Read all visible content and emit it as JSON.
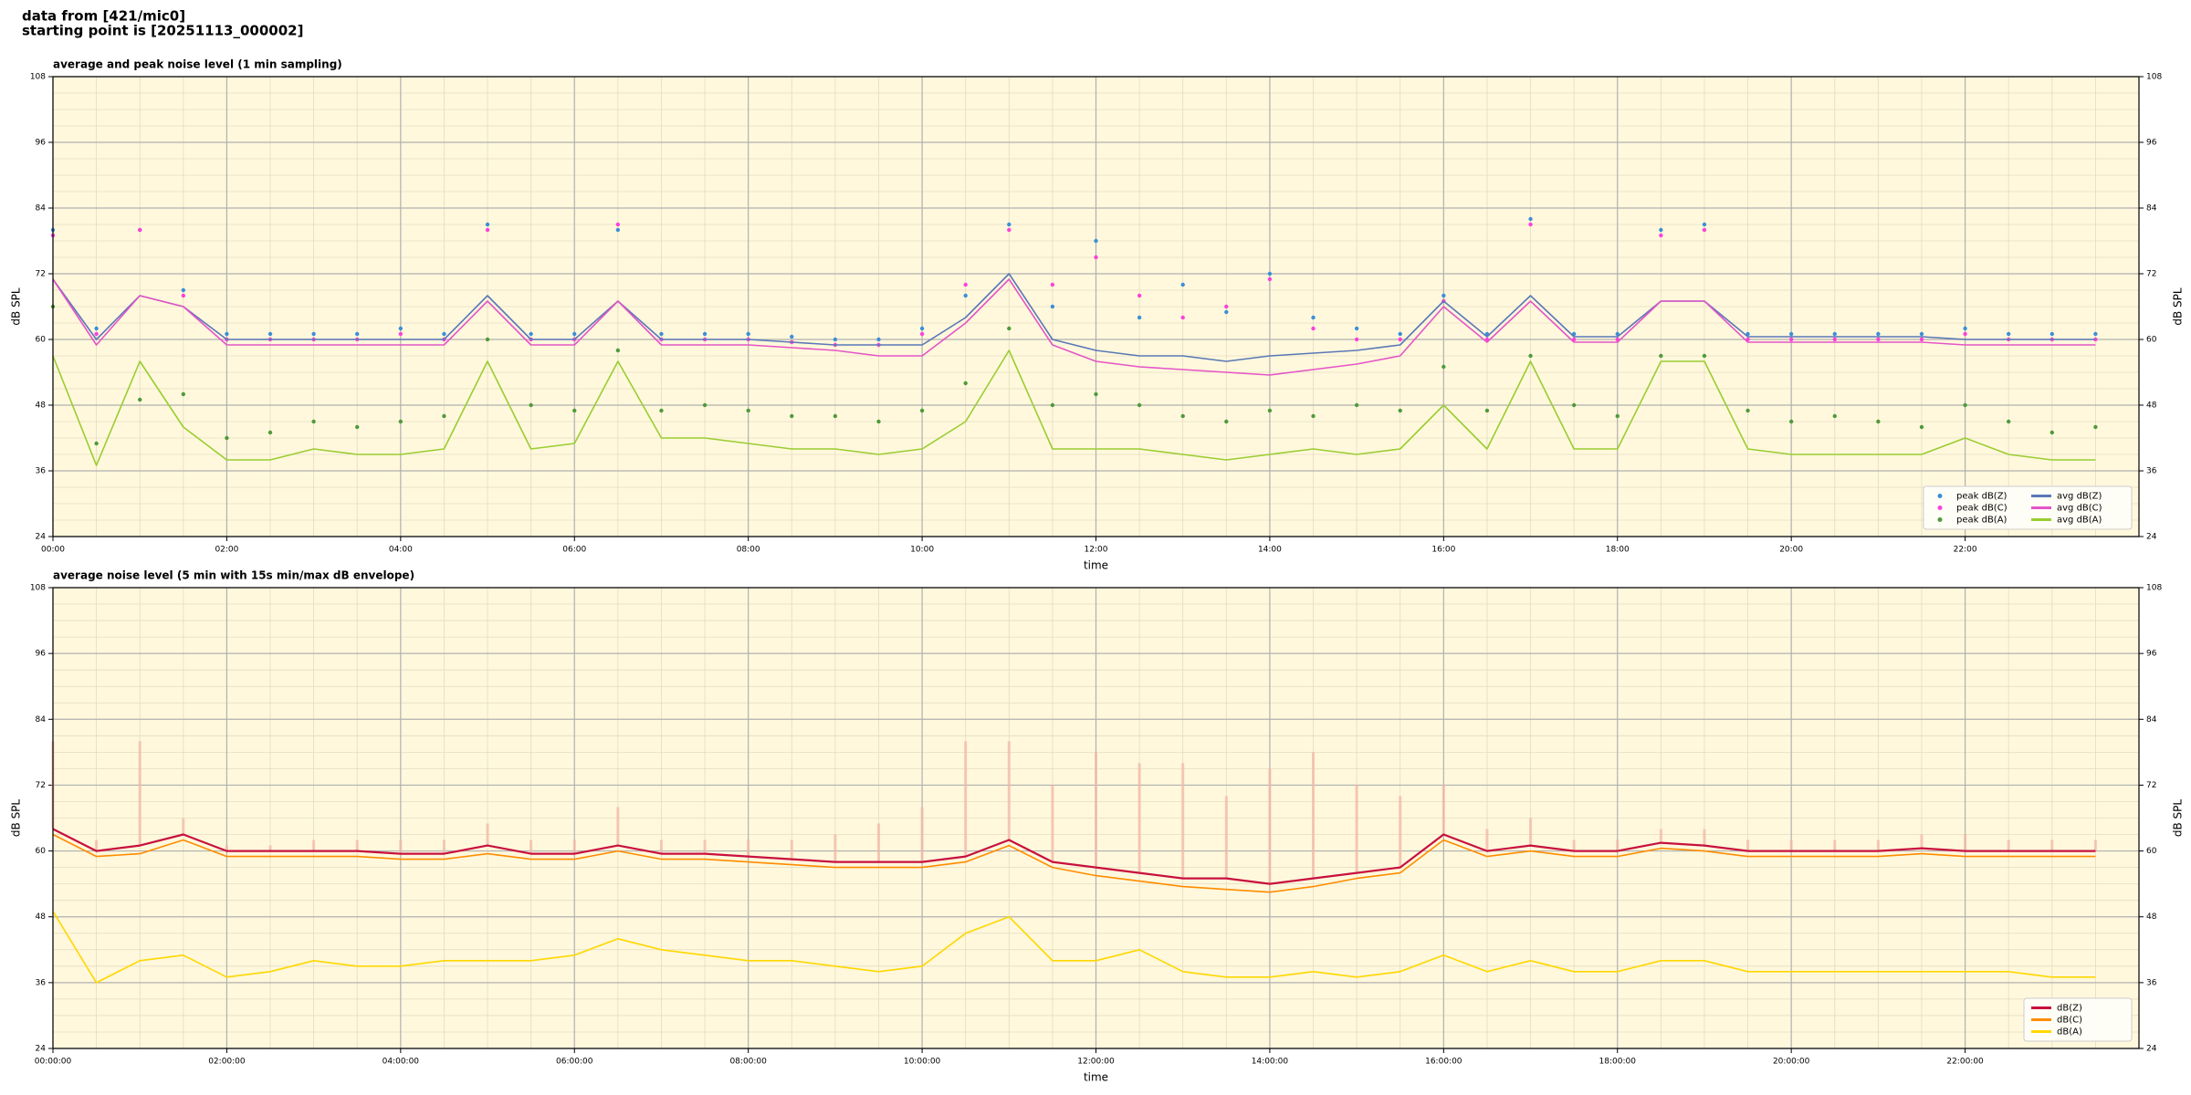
{
  "page_title": [
    "data from [421/mic0]",
    "starting point is [20251113_000002]"
  ],
  "chart_data": [
    {
      "type": "line",
      "title": "average and peak noise level (1 min sampling)",
      "xlabel": "time",
      "ylabel": "dB SPL",
      "background": "#fff8dc",
      "grid": true,
      "legend": "lower right",
      "legend_columns": 2,
      "x": [
        0,
        0.5,
        1,
        1.5,
        2,
        2.5,
        3,
        3.5,
        4,
        4.5,
        5,
        5.5,
        6,
        6.5,
        7,
        7.5,
        8,
        8.5,
        9,
        9.5,
        10,
        10.5,
        11,
        11.5,
        12,
        12.5,
        13,
        13.5,
        14,
        14.5,
        15,
        15.5,
        16,
        16.5,
        17,
        17.5,
        18,
        18.5,
        19,
        19.5,
        20,
        20.5,
        21,
        21.5,
        22,
        22.5,
        23,
        23.5
      ],
      "xlim": [
        0,
        24
      ],
      "xticks": [
        {
          "value": 0,
          "label": "00:00"
        },
        {
          "value": 2,
          "label": "02:00"
        },
        {
          "value": 4,
          "label": "04:00"
        },
        {
          "value": 6,
          "label": "06:00"
        },
        {
          "value": 8,
          "label": "08:00"
        },
        {
          "value": 10,
          "label": "10:00"
        },
        {
          "value": 12,
          "label": "12:00"
        },
        {
          "value": 14,
          "label": "14:00"
        },
        {
          "value": 16,
          "label": "16:00"
        },
        {
          "value": 18,
          "label": "18:00"
        },
        {
          "value": 20,
          "label": "20:00"
        },
        {
          "value": 22,
          "label": "22:00"
        }
      ],
      "ylim": [
        24,
        108
      ],
      "yticks": [
        24,
        36,
        48,
        60,
        72,
        84,
        96,
        108
      ],
      "series": [
        {
          "name": "peak dB(Z)",
          "mode": "markers",
          "color": "#3a8fd8",
          "values": [
            80,
            62,
            80,
            69,
            61,
            61,
            61,
            61,
            62,
            61,
            81,
            61,
            61,
            80,
            61,
            61,
            61,
            60.5,
            60,
            60,
            62,
            68,
            81,
            66,
            78,
            64,
            70,
            65,
            72,
            64,
            62,
            61,
            68,
            61,
            82,
            61,
            61,
            80,
            81,
            61,
            61,
            61,
            61,
            61,
            62,
            61,
            61,
            61
          ]
        },
        {
          "name": "peak dB(C)",
          "mode": "markers",
          "color": "#ff3fdc",
          "values": [
            79,
            61,
            80,
            68,
            60,
            60,
            60,
            60,
            61,
            60,
            80,
            60,
            60,
            81,
            60,
            60,
            60,
            59.5,
            59,
            59,
            61,
            70,
            80,
            70,
            75,
            68,
            64,
            66,
            71,
            62,
            60,
            60,
            67,
            60,
            81,
            60,
            60,
            79,
            80,
            60,
            60,
            60,
            60,
            60,
            61,
            60,
            60,
            60
          ]
        },
        {
          "name": "peak dB(A)",
          "mode": "markers",
          "color": "#4e9a3a",
          "values": [
            66,
            41,
            49,
            50,
            42,
            43,
            45,
            44,
            45,
            46,
            60,
            48,
            47,
            58,
            47,
            48,
            47,
            46,
            46,
            45,
            47,
            52,
            62,
            48,
            50,
            48,
            46,
            45,
            47,
            46,
            48,
            47,
            55,
            47,
            57,
            48,
            46,
            57,
            57,
            47,
            45,
            46,
            45,
            44,
            48,
            45,
            43,
            44
          ]
        },
        {
          "name": "avg dB(Z)",
          "mode": "lines",
          "color": "#5a78b8",
          "values": [
            71,
            60,
            68,
            66,
            60,
            60,
            60,
            60,
            60,
            60,
            68,
            60,
            60,
            67,
            60,
            60,
            60,
            59.5,
            59,
            59,
            59,
            64,
            72,
            60,
            58,
            57,
            57,
            56,
            57,
            57.5,
            58,
            59,
            67,
            60.5,
            68,
            60.5,
            60.5,
            67,
            67,
            60.5,
            60.5,
            60.5,
            60.5,
            60.5,
            60,
            60,
            60,
            60
          ]
        },
        {
          "name": "avg dB(C)",
          "mode": "lines",
          "color": "#e455c8",
          "values": [
            71,
            59,
            68,
            66,
            59,
            59,
            59,
            59,
            59,
            59,
            67,
            59,
            59,
            67,
            59,
            59,
            59,
            58.5,
            58,
            57,
            57,
            63,
            71,
            59,
            56,
            55,
            54.5,
            54,
            53.5,
            54.5,
            55.5,
            57,
            66,
            59.5,
            67,
            59.5,
            59.5,
            67,
            67,
            59.5,
            59.5,
            59.5,
            59.5,
            59.5,
            59,
            59,
            59,
            59
          ]
        },
        {
          "name": "avg dB(A)",
          "mode": "lines",
          "color": "#9acd32",
          "values": [
            57,
            37,
            56,
            44,
            38,
            38,
            40,
            39,
            39,
            40,
            56,
            40,
            41,
            56,
            42,
            42,
            41,
            40,
            40,
            39,
            40,
            45,
            58,
            40,
            40,
            40,
            39,
            38,
            39,
            40,
            39,
            40,
            48,
            40,
            56,
            40,
            40,
            56,
            56,
            40,
            39,
            39,
            39,
            39,
            42,
            39,
            38,
            38
          ]
        }
      ]
    },
    {
      "type": "line",
      "title": "average noise level (5 min with 15s min/max dB envelope)",
      "xlabel": "time",
      "ylabel": "dB SPL",
      "background": "#fff8dc",
      "grid": true,
      "legend": "lower right",
      "legend_columns": 1,
      "x": [
        0,
        0.5,
        1,
        1.5,
        2,
        2.5,
        3,
        3.5,
        4,
        4.5,
        5,
        5.5,
        6,
        6.5,
        7,
        7.5,
        8,
        8.5,
        9,
        9.5,
        10,
        10.5,
        11,
        11.5,
        12,
        12.5,
        13,
        13.5,
        14,
        14.5,
        15,
        15.5,
        16,
        16.5,
        17,
        17.5,
        18,
        18.5,
        19,
        19.5,
        20,
        20.5,
        21,
        21.5,
        22,
        22.5,
        23,
        23.5
      ],
      "xlim": [
        0,
        24
      ],
      "xticks": [
        {
          "value": 0,
          "label": "00:00:00"
        },
        {
          "value": 2,
          "label": "02:00:00"
        },
        {
          "value": 4,
          "label": "04:00:00"
        },
        {
          "value": 6,
          "label": "06:00:00"
        },
        {
          "value": 8,
          "label": "08:00:00"
        },
        {
          "value": 10,
          "label": "10:00:00"
        },
        {
          "value": 12,
          "label": "12:00:00"
        },
        {
          "value": 14,
          "label": "14:00:00"
        },
        {
          "value": 16,
          "label": "16:00:00"
        },
        {
          "value": 18,
          "label": "18:00:00"
        },
        {
          "value": 20,
          "label": "20:00:00"
        },
        {
          "value": 22,
          "label": "22:00:00"
        }
      ],
      "ylim": [
        24,
        108
      ],
      "yticks": [
        24,
        36,
        48,
        60,
        72,
        84,
        96,
        108
      ],
      "envelope": {
        "color": "#f4b8a8",
        "max": [
          80,
          62,
          80,
          66,
          61,
          61,
          62,
          62,
          62,
          62,
          65,
          62,
          62,
          68,
          62,
          62,
          62,
          62,
          63,
          65,
          68,
          80,
          80,
          72,
          78,
          76,
          76,
          70,
          75,
          78,
          72,
          70,
          72,
          64,
          66,
          62,
          62,
          64,
          64,
          62,
          62,
          62,
          62,
          63,
          63,
          62,
          62,
          62
        ]
      },
      "series": [
        {
          "name": "dB(Z)",
          "mode": "lines",
          "color": "#c8103e",
          "values": [
            64,
            60,
            61,
            63,
            60,
            60,
            60,
            60,
            59.5,
            59.5,
            61,
            59.5,
            59.5,
            61,
            59.5,
            59.5,
            59,
            58.5,
            58,
            58,
            58,
            59,
            62,
            58,
            57,
            56,
            55,
            55,
            54,
            55,
            56,
            57,
            63,
            60,
            61,
            60,
            60,
            61.5,
            61,
            60,
            60,
            60,
            60,
            60.5,
            60,
            60,
            60,
            60
          ]
        },
        {
          "name": "dB(C)",
          "mode": "lines",
          "color": "#ff8c00",
          "values": [
            63,
            59,
            59.5,
            62,
            59,
            59,
            59,
            59,
            58.5,
            58.5,
            59.5,
            58.5,
            58.5,
            60,
            58.5,
            58.5,
            58,
            57.5,
            57,
            57,
            57,
            58,
            61,
            57,
            55.5,
            54.5,
            53.5,
            53,
            52.5,
            53.5,
            55,
            56,
            62,
            59,
            60,
            59,
            59,
            60.5,
            60,
            59,
            59,
            59,
            59,
            59.5,
            59,
            59,
            59,
            59
          ]
        },
        {
          "name": "dB(A)",
          "mode": "lines",
          "color": "#ffd700",
          "values": [
            49,
            36,
            40,
            41,
            37,
            38,
            40,
            39,
            39,
            40,
            40,
            40,
            41,
            44,
            42,
            41,
            40,
            40,
            39,
            38,
            39,
            45,
            48,
            40,
            40,
            42,
            38,
            37,
            37,
            38,
            37,
            38,
            41,
            38,
            40,
            38,
            38,
            40,
            40,
            38,
            38,
            38,
            38,
            38,
            38,
            38,
            37,
            37
          ]
        }
      ]
    }
  ]
}
